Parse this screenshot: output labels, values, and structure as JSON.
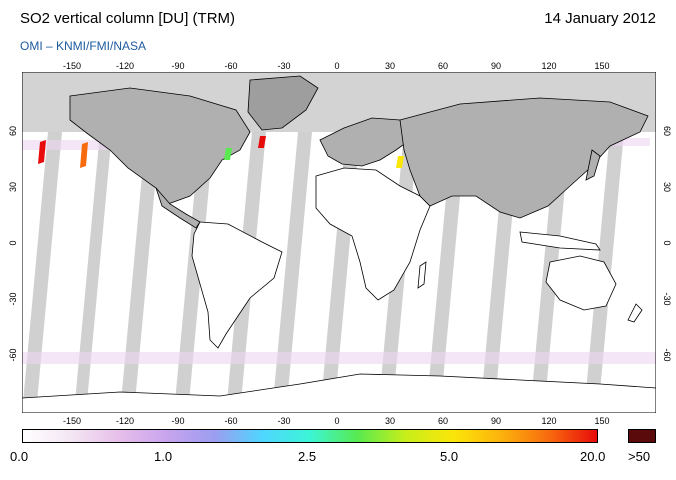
{
  "header": {
    "title": "SO2 vertical column [DU] (TRM)",
    "date": "14 January 2012",
    "credit": "OMI  –  KNMI/FMI/NASA"
  },
  "map": {
    "lon_ticks": [
      "-150",
      "-120",
      "-90",
      "-60",
      "-30",
      "0",
      "30",
      "60",
      "90",
      "120",
      "150"
    ],
    "lat_ticks": [
      "60",
      "30",
      "0",
      "-30",
      "-60"
    ],
    "colors": {
      "ocean": "#ffffff",
      "polar_night": "#d3d3d3",
      "land_night": "#9e9e9e",
      "swath_gap": "#c8c8c8",
      "coastline": "#000000"
    }
  },
  "colorbar": {
    "labels": [
      "0.0",
      "1.0",
      "2.5",
      "5.0",
      "20.0"
    ],
    "overflow_label": ">50",
    "stops": [
      "#ffffff",
      "#f4e6f4",
      "#e6bfe9",
      "#c9a4ee",
      "#9c9df0",
      "#4fd6ff",
      "#3cf5d6",
      "#58ea4f",
      "#c8ee1a",
      "#fbe60a",
      "#fcb20c",
      "#f86a0e",
      "#e80b0b"
    ],
    "overflow_color": "#5a0a0a"
  }
}
